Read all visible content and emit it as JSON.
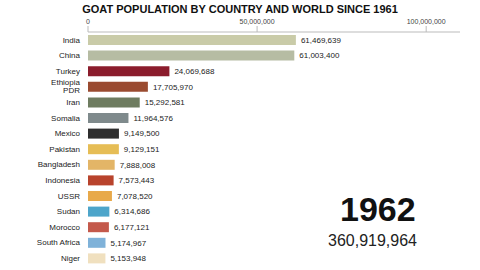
{
  "chart_data": {
    "type": "bar",
    "title": "GOAT POPULATION BY COUNTRY AND WORLD SINCE 1961",
    "orientation": "horizontal",
    "data_labels": true,
    "categories": [
      "India",
      "China",
      "Turkey",
      "Ethiopia PDR",
      "Iran",
      "Somalia",
      "Mexico",
      "Pakistan",
      "Bangladesh",
      "Indonesia",
      "USSR",
      "Sudan",
      "Morocco",
      "South Africa",
      "Niger"
    ],
    "values": [
      61469639,
      61003400,
      24069688,
      17705970,
      15292581,
      11964576,
      9149500,
      9129151,
      7888008,
      7573443,
      7078520,
      6314686,
      6177121,
      5174967,
      5153948
    ],
    "value_labels": [
      "61,469,639",
      "61,003,400",
      "24,069,688",
      "17,705,970",
      "15,292,581",
      "11,964,576",
      "9,149,500",
      "9,129,151",
      "7,888,008",
      "7,573,443",
      "7,078,520",
      "6,314,686",
      "6,177,121",
      "5,174,967",
      "5,153,948"
    ],
    "colors": [
      "#c9cba8",
      "#b6bca3",
      "#8b1c2c",
      "#9a4b30",
      "#6e7c60",
      "#7f8a8c",
      "#2e2e2e",
      "#e6bd55",
      "#e3b567",
      "#b8432c",
      "#e8a94a",
      "#4da5ca",
      "#c4594b",
      "#7fb2d9",
      "#f0e0bf"
    ],
    "xlim": [
      0,
      110000000
    ],
    "xticks": [
      0,
      {
        "value": 50000000,
        "label": "50,000,000"
      },
      {
        "value": 100000000,
        "label": "100,000,000"
      }
    ],
    "annotations": [
      "1962",
      "360,919,964"
    ]
  }
}
